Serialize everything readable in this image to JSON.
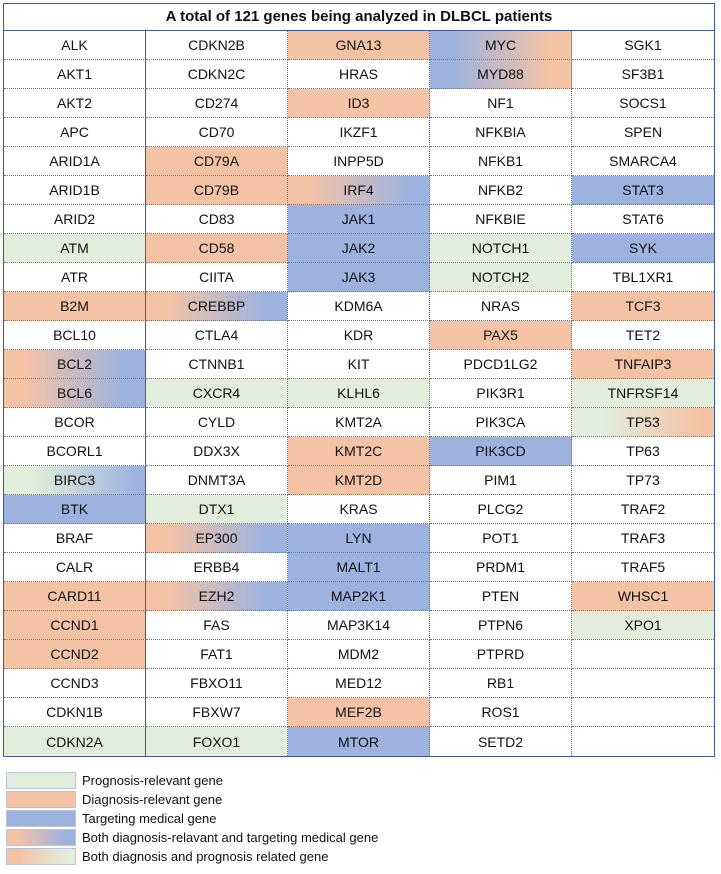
{
  "title": "A total of 121 genes being analyzed in DLBCL patients",
  "colors": {
    "prognosis": "#e1eedc",
    "diagnosis": "#f4c3a6",
    "targeting": "#9db2df"
  },
  "columns": [
    [
      "ALK",
      "AKT1",
      "AKT2",
      "APC",
      "ARID1A",
      "ARID1B",
      "ARID2",
      "ATM",
      "ATR",
      "B2M",
      "BCL10",
      "BCL2",
      "BCL6",
      "BCOR",
      "BCORL1",
      "BIRC3",
      "BTK",
      "BRAF",
      "CALR",
      "CARD11",
      "CCND1",
      "CCND2",
      "CCND3",
      "CDKN1B",
      "CDKN2A"
    ],
    [
      "CDKN2B",
      "CDKN2C",
      "CD274",
      "CD70",
      "CD79A",
      "CD79B",
      "CD83",
      "CD58",
      "CIITA",
      "CREBBP",
      "CTLA4",
      "CTNNB1",
      "CXCR4",
      "CYLD",
      "DDX3X",
      "DNMT3A",
      "DTX1",
      "EP300",
      "ERBB4",
      "EZH2",
      "FAS",
      "FAT1",
      "FBXO11",
      "FBXW7",
      "FOXO1"
    ],
    [
      "GNA13",
      "HRAS",
      "ID3",
      "IKZF1",
      "INPP5D",
      "IRF4",
      "JAK1",
      "JAK2",
      "JAK3",
      "KDM6A",
      "KDR",
      "KIT",
      "KLHL6",
      "KMT2A",
      "KMT2C",
      "KMT2D",
      "KRAS",
      "LYN",
      "MALT1",
      "MAP2K1",
      "MAP3K14",
      "MDM2",
      "MED12",
      "MEF2B",
      "MTOR"
    ],
    [
      "MYC",
      "MYD88",
      "NF1",
      "NFKBIA",
      "NFKB1",
      "NFKB2",
      "NFKBIE",
      "NOTCH1",
      "NOTCH2",
      "NRAS",
      "PAX5",
      "PDCD1LG2",
      "PIK3R1",
      "PIK3CA",
      "PIK3CD",
      "PIM1",
      "PLCG2",
      "POT1",
      "PRDM1",
      "PTEN",
      "PTPN6",
      "PTPRD",
      "RB1",
      "ROS1",
      "SETD2"
    ],
    [
      "SGK1",
      "SF3B1",
      "SOCS1",
      "SPEN",
      "SMARCA4",
      "STAT3",
      "STAT6",
      "SYK",
      "TBL1XR1",
      "TCF3",
      "TET2",
      "TNFAIP3",
      "TNFRSF14",
      "TP53",
      "TP63",
      "TP73",
      "TRAF2",
      "TRAF3",
      "TRAF5",
      "WHSC1",
      "XPO1",
      "",
      "",
      "",
      ""
    ]
  ],
  "categories": [
    [
      "",
      "",
      "",
      "",
      "",
      "",
      "",
      "p",
      "",
      "d",
      "",
      "dt",
      "dt",
      "",
      "",
      "pt",
      "t",
      "",
      "",
      "d",
      "d",
      "d",
      "",
      "",
      "p"
    ],
    [
      "",
      "",
      "",
      "",
      "d",
      "d",
      "",
      "d",
      "",
      "dt",
      "",
      "",
      "p",
      "",
      "",
      "",
      "p",
      "dt",
      "",
      "dt",
      "",
      "",
      "",
      "",
      "p"
    ],
    [
      "d",
      "",
      "d",
      "",
      "",
      "dt",
      "t",
      "t",
      "t",
      "",
      "",
      "",
      "p",
      "",
      "d",
      "d",
      "",
      "t",
      "t",
      "t",
      "",
      "",
      "",
      "d",
      "t"
    ],
    [
      "td",
      "td",
      "",
      "",
      "",
      "",
      "",
      "p",
      "p",
      "",
      "d",
      "",
      "",
      "",
      "t",
      "",
      "",
      "",
      "",
      "",
      "",
      "",
      "",
      "",
      ""
    ],
    [
      "",
      "",
      "",
      "",
      "",
      "t",
      "",
      "t",
      "",
      "d",
      "",
      "d",
      "p",
      "pd",
      "",
      "",
      "",
      "",
      "",
      "d",
      "p",
      "",
      "",
      "",
      ""
    ]
  ],
  "legend": [
    {
      "label": "Prognosis-relevant gene",
      "cls": "c-p"
    },
    {
      "label": "Diagnosis-relevant gene",
      "cls": "c-d"
    },
    {
      "label": "Targeting medical gene",
      "cls": "c-t"
    },
    {
      "label": "Both diagnosis-relavant and targeting medical gene",
      "cls": "c-dt"
    },
    {
      "label": "Both diagnosis and prognosis related gene",
      "cls": "c-dp"
    }
  ]
}
